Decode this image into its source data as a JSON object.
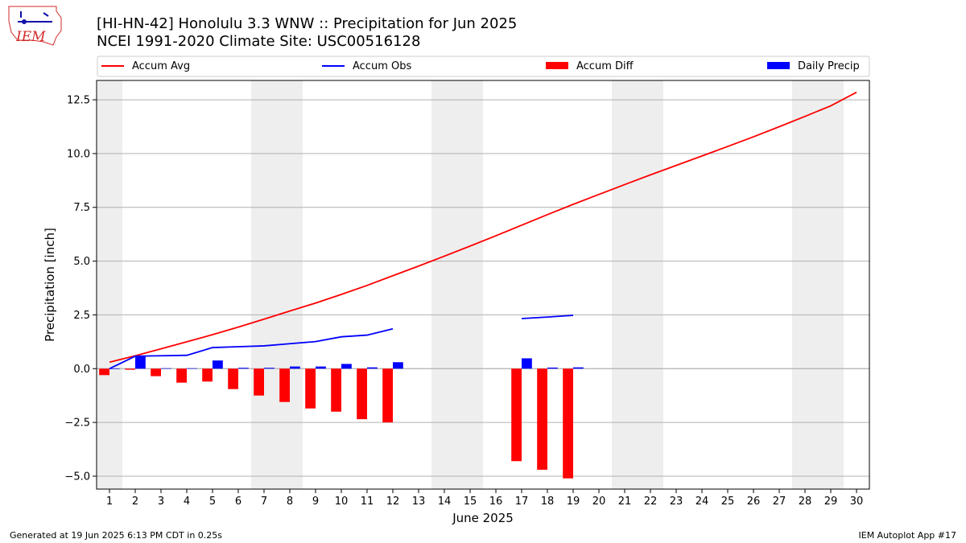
{
  "header": {
    "title_line1": "[HI-HN-42] Honolulu 3.3 WNW :: Precipitation for Jun 2025",
    "title_line2": "NCEI 1991-2020 Climate Site: USC00516128",
    "logo_text": "IEM"
  },
  "footer": {
    "left": "Generated at 19 Jun 2025 6:13 PM CDT in 0.25s",
    "right": "IEM Autoplot App #17"
  },
  "chart_data": {
    "type": "bar",
    "xlabel": "June 2025",
    "ylabel": "Precipitation [inch]",
    "x": [
      1,
      2,
      3,
      4,
      5,
      6,
      7,
      8,
      9,
      10,
      11,
      12,
      13,
      14,
      15,
      16,
      17,
      18,
      19,
      20,
      21,
      22,
      23,
      24,
      25,
      26,
      27,
      28,
      29,
      30
    ],
    "x_range": [
      0.5,
      30.5
    ],
    "ylim": [
      -5.6,
      13.4
    ],
    "y_ticks": [
      -5.0,
      -2.5,
      0.0,
      2.5,
      5.0,
      7.5,
      10.0,
      12.5
    ],
    "y_tick_labels": [
      "−5.0",
      "−2.5",
      "0.0",
      "2.5",
      "5.0",
      "7.5",
      "10.0",
      "12.5"
    ],
    "grid": "horizontal",
    "weekend_shading": [
      [
        0.5,
        1.5
      ],
      [
        6.5,
        8.5
      ],
      [
        13.5,
        15.5
      ],
      [
        20.5,
        22.5
      ],
      [
        27.5,
        29.5
      ]
    ],
    "legend_position": "top",
    "series": [
      {
        "name": "Accum Avg",
        "kind": "line",
        "color": "#ff0000",
        "x": [
          1,
          2,
          3,
          4,
          5,
          6,
          7,
          8,
          9,
          10,
          11,
          12,
          13,
          14,
          15,
          16,
          17,
          18,
          19,
          20,
          21,
          22,
          23,
          24,
          25,
          26,
          27,
          28,
          29,
          30
        ],
        "values": [
          0.3,
          0.6,
          0.92,
          1.25,
          1.58,
          1.93,
          2.3,
          2.68,
          3.05,
          3.45,
          3.87,
          4.32,
          4.77,
          5.23,
          5.7,
          6.18,
          6.67,
          7.16,
          7.64,
          8.1,
          8.56,
          9.01,
          9.45,
          9.89,
          10.33,
          10.78,
          11.25,
          11.73,
          12.22,
          12.85
        ]
      },
      {
        "name": "Accum Obs",
        "kind": "line",
        "color": "#0000ff",
        "segments": [
          {
            "x": [
              1,
              2,
              3,
              4,
              5,
              6,
              7,
              8,
              9,
              10,
              11,
              12
            ],
            "values": [
              0.0,
              0.58,
              0.6,
              0.62,
              0.98,
              1.02,
              1.06,
              1.16,
              1.26,
              1.48,
              1.56,
              1.85
            ]
          },
          {
            "x": [
              17,
              18,
              19
            ],
            "values": [
              2.33,
              2.4,
              2.48
            ]
          }
        ]
      },
      {
        "name": "Accum Diff",
        "kind": "bar",
        "color": "#ff0000",
        "x": [
          1,
          2,
          3,
          4,
          5,
          6,
          7,
          8,
          9,
          10,
          11,
          12,
          17,
          18,
          19
        ],
        "values": [
          -0.3,
          -0.05,
          -0.35,
          -0.65,
          -0.6,
          -0.95,
          -1.25,
          -1.55,
          -1.85,
          -2.0,
          -2.35,
          -2.5,
          -4.3,
          -4.7,
          -5.1
        ]
      },
      {
        "name": "Daily Precip",
        "kind": "bar",
        "color": "#0000ff",
        "x": [
          1,
          2,
          3,
          4,
          5,
          6,
          7,
          8,
          9,
          10,
          11,
          12,
          17,
          18,
          19
        ],
        "values": [
          0.0,
          0.58,
          0.02,
          0.02,
          0.38,
          0.04,
          0.04,
          0.1,
          0.1,
          0.22,
          0.06,
          0.3,
          0.48,
          0.05,
          0.06
        ]
      }
    ]
  }
}
